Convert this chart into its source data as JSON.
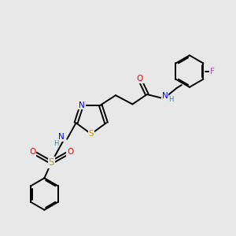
{
  "background_color": "#e8e8e8",
  "bond_color": "#000000",
  "atom_colors": {
    "O": "#ff0000",
    "N": "#0000ff",
    "S": "#c8a000",
    "F": "#bb44bb",
    "H": "#448888",
    "C": "#000000"
  },
  "font_size": 7.5,
  "line_width": 1.4,
  "lw_ring": 1.4
}
